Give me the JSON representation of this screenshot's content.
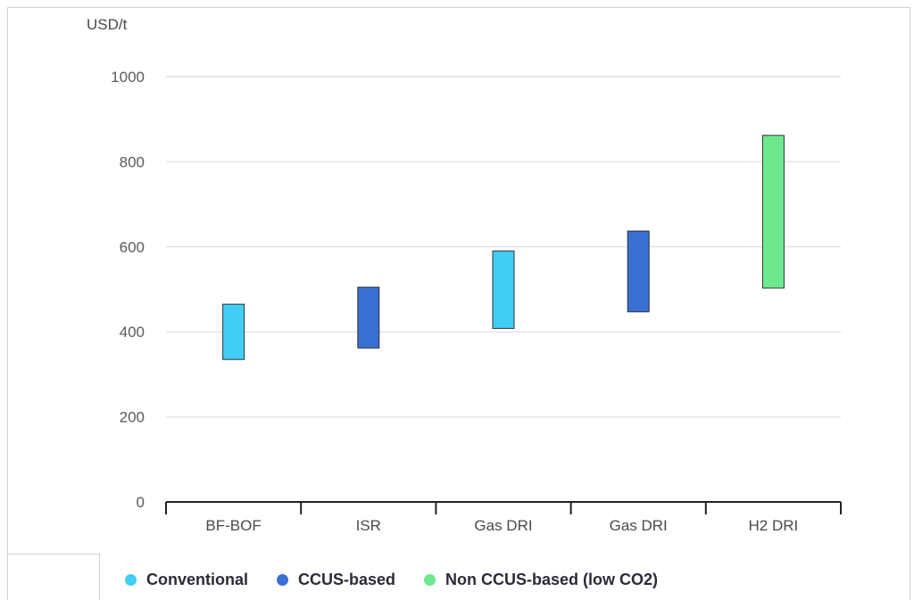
{
  "chart_data": {
    "type": "bar",
    "ylabel": "USD/t",
    "ylim": [
      0,
      1000
    ],
    "yticks": [
      0,
      200,
      400,
      600,
      800,
      1000
    ],
    "grid": true,
    "legend_position": "bottom",
    "categories": [
      "BF-BOF",
      "ISR",
      "Gas DRI",
      "Gas DRI",
      "H2 DRI"
    ],
    "ranges": [
      {
        "category": "BF-BOF",
        "low": 335,
        "high": 465,
        "series": "Conventional"
      },
      {
        "category": "ISR",
        "low": 362,
        "high": 505,
        "series": "CCUS-based"
      },
      {
        "category": "Gas DRI",
        "low": 408,
        "high": 590,
        "series": "Conventional"
      },
      {
        "category": "Gas DRI",
        "low": 447,
        "high": 637,
        "series": "CCUS-based"
      },
      {
        "category": "H2 DRI",
        "low": 503,
        "high": 862,
        "series": "Non CCUS-based (low CO2)"
      }
    ],
    "series": [
      {
        "name": "Conventional",
        "color": "#41cdf4"
      },
      {
        "name": "CCUS-based",
        "color": "#3a6fd4"
      },
      {
        "name": "Non CCUS-based (low CO2)",
        "color": "#6ee88e"
      }
    ]
  }
}
